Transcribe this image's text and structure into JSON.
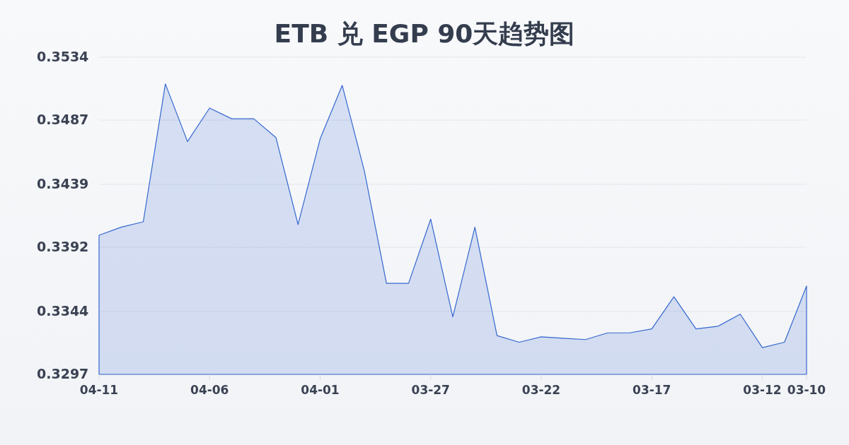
{
  "chart_data": {
    "type": "area",
    "title": "ETB 兑 EGP 90天趋势图",
    "categories": [
      "04-11",
      null,
      null,
      null,
      null,
      "04-06",
      null,
      null,
      null,
      null,
      "04-01",
      null,
      null,
      null,
      null,
      "03-27",
      null,
      null,
      null,
      null,
      "03-22",
      null,
      null,
      null,
      null,
      "03-17",
      null,
      null,
      null,
      null,
      "03-12",
      null,
      "03-10"
    ],
    "values": [
      0.3401,
      0.3407,
      0.3411,
      0.3514,
      0.3471,
      0.3496,
      0.3488,
      0.3488,
      0.3474,
      0.3409,
      0.3473,
      0.3513,
      0.3449,
      0.3365,
      0.3365,
      0.3413,
      0.334,
      0.3407,
      0.3326,
      0.3321,
      0.3325,
      0.3324,
      0.3323,
      0.3328,
      0.3328,
      0.3331,
      0.3355,
      0.3331,
      0.3333,
      0.3342,
      0.3317,
      0.3321,
      0.3363
    ],
    "color": "#3467d0",
    "ylim": [
      0.3297,
      0.3534
    ],
    "yticks": [
      0.3297,
      0.3344,
      0.3392,
      0.3439,
      0.3487,
      0.3534
    ],
    "grid": "y"
  }
}
